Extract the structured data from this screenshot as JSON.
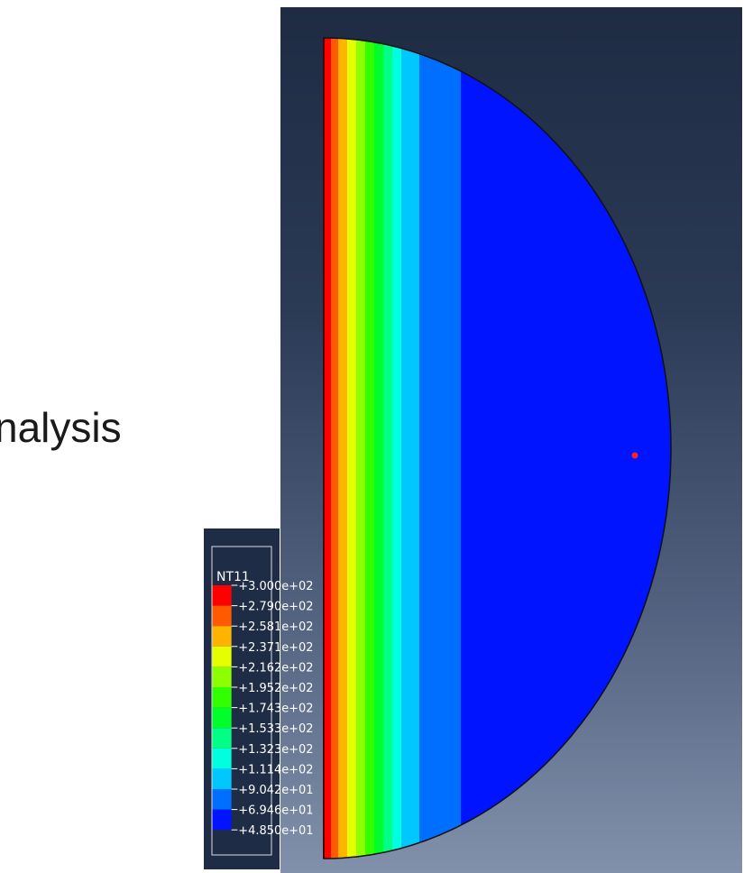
{
  "slide": {
    "partial_text": "nalysis"
  },
  "legend": {
    "title": "NT11",
    "entries": [
      {
        "value": "+3.000e+02",
        "color": "#ff0000"
      },
      {
        "value": "+2.790e+02",
        "color": "#ff5a00"
      },
      {
        "value": "+2.581e+02",
        "color": "#ffb400"
      },
      {
        "value": "+2.371e+02",
        "color": "#e6ff00"
      },
      {
        "value": "+2.162e+02",
        "color": "#8cff00"
      },
      {
        "value": "+1.952e+02",
        "color": "#32ff00"
      },
      {
        "value": "+1.743e+02",
        "color": "#00ff2a"
      },
      {
        "value": "+1.533e+02",
        "color": "#00ff84"
      },
      {
        "value": "+1.323e+02",
        "color": "#00ffde"
      },
      {
        "value": "+1.114e+02",
        "color": "#00c8ff"
      },
      {
        "value": "+9.042e+01",
        "color": "#006eff"
      },
      {
        "value": "+6.946e+01",
        "color": "#0014ff"
      },
      {
        "value": "+4.850e+01",
        "color": ""
      }
    ]
  },
  "contour_bands": [
    "#ff0000",
    "#ff5a00",
    "#ffb400",
    "#e6ff00",
    "#8cff00",
    "#32ff00",
    "#00ff2a",
    "#00ff84",
    "#00ffde",
    "#00c8ff",
    "#006eff",
    "#0014ff"
  ],
  "colors": {
    "viewport_top": "#1e2b43",
    "viewport_bottom": "#8291ab",
    "legend_bg": "#1f2c45",
    "legend_text": "#ffffff",
    "marker": "#ff2020"
  }
}
